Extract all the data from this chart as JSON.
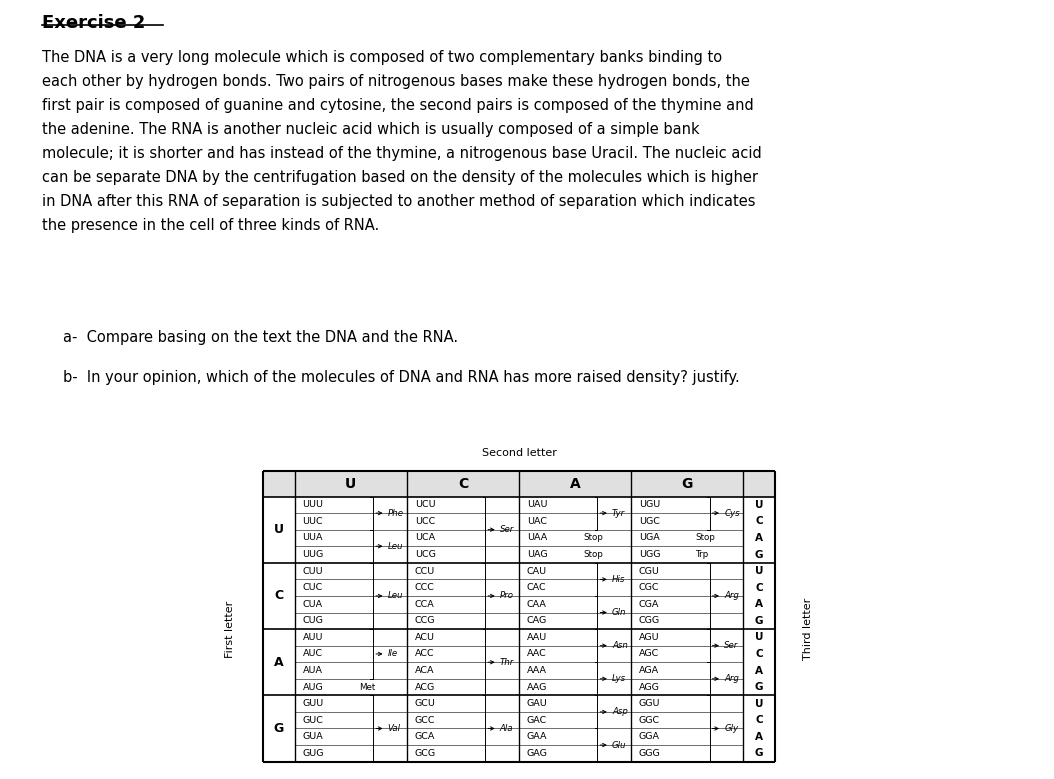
{
  "title": "Exercise 2",
  "paragraph": "The DNA is a very long molecule which is composed of two complementary banks binding to\neach other by hydrogen bonds. Two pairs of nitrogenous bases make these hydrogen bonds, the\nfirst pair is composed of guanine and cytosine, the second pairs is composed of the thymine and\nthe adenine. The RNA is another nucleic acid which is usually composed of a simple bank\nmolecule; it is shorter and has instead of the thymine, a nitrogenous base Uracil. The nucleic acid\ncan be separate DNA by the centrifugation based on the density of the molecules which is higher\nin DNA after this RNA of separation is subjected to another method of separation which indicates\nthe presence in the cell of three kinds of RNA.",
  "question_a": "a-  Compare basing on the text the DNA and the RNA.",
  "question_b": "b-  In your opinion, which of the molecules of DNA and RNA has more raised density? justify.",
  "second_letter_label": "Second letter",
  "first_letter_label": "First letter",
  "third_letter_label": "Third letter",
  "col_headers": [
    "U",
    "C",
    "A",
    "G"
  ],
  "row_headers": [
    "U",
    "C",
    "A",
    "G"
  ],
  "third_letters": [
    "U",
    "C",
    "A",
    "G"
  ]
}
